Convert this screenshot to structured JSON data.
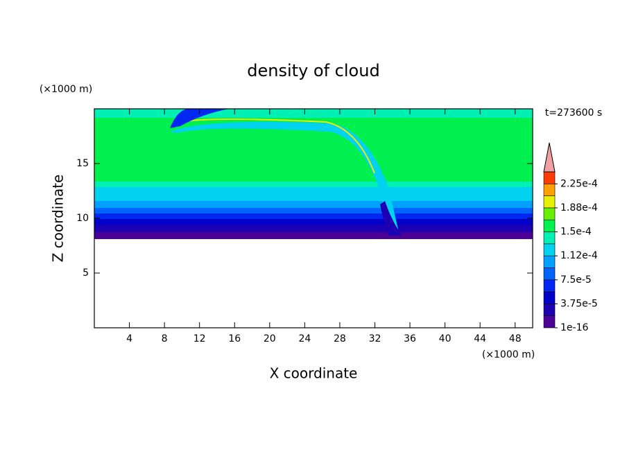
{
  "chart_data": {
    "type": "contour",
    "title": "density of cloud",
    "xlabel": "X coordinate",
    "ylabel": "Z coordinate",
    "x_unit": "(×1000 m)",
    "y_unit": "(×1000 m)",
    "annotation": "t=273600 s",
    "xlim": [
      0,
      50
    ],
    "xticks": [
      4,
      8,
      12,
      16,
      20,
      24,
      28,
      32,
      36,
      40,
      44,
      48
    ],
    "ylim": [
      0,
      20
    ],
    "yticks": [
      5,
      10,
      15
    ],
    "colorbar": {
      "lim": [
        1e-16,
        0.00024375
      ],
      "ticks": [
        {
          "value": 1e-16,
          "label": "1e-16"
        },
        {
          "value": 3.75e-05,
          "label": "3.75e-5"
        },
        {
          "value": 7.5e-05,
          "label": "7.5e-5"
        },
        {
          "value": 0.0001125,
          "label": "1.12e-4"
        },
        {
          "value": 0.00015,
          "label": "1.5e-4"
        },
        {
          "value": 0.0001875,
          "label": "1.88e-4"
        },
        {
          "value": 0.000225,
          "label": "2.25e-4"
        }
      ],
      "colors": [
        "#4b0096",
        "#1e00b4",
        "#0000c8",
        "#0028f0",
        "#0064ff",
        "#00a0ff",
        "#00d2f0",
        "#00f0b4",
        "#00f050",
        "#64f000",
        "#e6f000",
        "#ffa000",
        "#ff3c00"
      ],
      "extend_color": "#f0a0a0"
    }
  }
}
